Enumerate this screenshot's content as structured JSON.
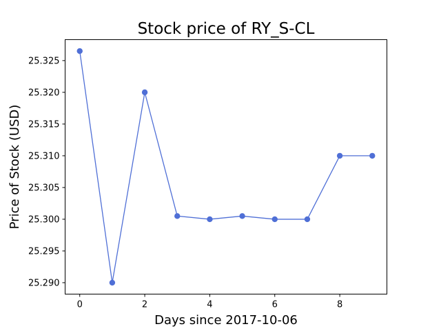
{
  "chart_data": {
    "type": "line",
    "title": "Stock price of RY_S-CL",
    "xlabel": "Days since 2017-10-06",
    "ylabel": "Price of Stock (USD)",
    "x": [
      0,
      1,
      2,
      3,
      4,
      5,
      6,
      7,
      8,
      9
    ],
    "y": [
      25.3265,
      25.29,
      25.32,
      25.3005,
      25.3,
      25.3005,
      25.3,
      25.3,
      25.31,
      25.31
    ],
    "xlim": [
      -0.45,
      9.45
    ],
    "ylim": [
      25.2882,
      25.3283
    ],
    "xticks": [
      0,
      2,
      4,
      6,
      8
    ],
    "xtick_labels": [
      "0",
      "2",
      "4",
      "6",
      "8"
    ],
    "yticks": [
      25.29,
      25.295,
      25.3,
      25.305,
      25.31,
      25.315,
      25.32,
      25.325
    ],
    "ytick_labels": [
      "25.290",
      "25.295",
      "25.300",
      "25.305",
      "25.310",
      "25.315",
      "25.320",
      "25.325"
    ],
    "grid": false,
    "legend": "none",
    "colors": {
      "series": "#4f6fd6"
    }
  }
}
